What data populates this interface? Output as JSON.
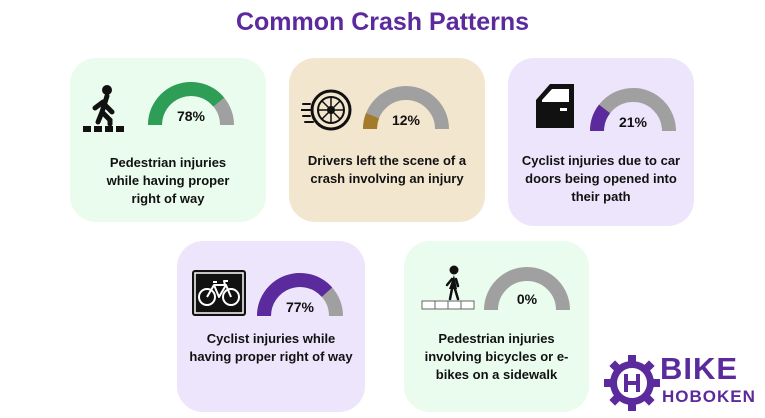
{
  "title": "Common Crash Patterns",
  "colors": {
    "title": "#5b2a9c",
    "gauge_track": "#a0a0a0",
    "green_fill": "#2e9e56",
    "tan_fill": "#a27b2c",
    "purple_fill": "#5b2a9c"
  },
  "cards": [
    {
      "text": "Pedestrian injuries while having proper right of way",
      "percent_label": "78%",
      "value": 78,
      "background": "#eafcee",
      "fill": "#2e9e56",
      "icon": "pedestrian-crosswalk-icon"
    },
    {
      "text": "Drivers left the scene of a crash involving an injury",
      "percent_label": "12%",
      "value": 12,
      "background": "#f3e6cf",
      "fill": "#a27b2c",
      "icon": "speeding-wheel-icon"
    },
    {
      "text": "Cyclist injuries due to car doors being opened into their path",
      "percent_label": "21%",
      "value": 21,
      "background": "#ece5fb",
      "fill": "#5b2a9c",
      "icon": "car-door-icon"
    },
    {
      "text": "Cyclist injuries while having proper right of way",
      "percent_label": "77%",
      "value": 77,
      "background": "#ece5fb",
      "fill": "#5b2a9c",
      "icon": "bicycle-sign-icon"
    },
    {
      "text": "Pedestrian injuries involving bicycles or e-bikes on a sidewalk",
      "percent_label": "0%",
      "value": 0,
      "background": "#eafcee",
      "fill": "#2e9e56",
      "icon": "sidewalk-pedestrian-icon"
    }
  ],
  "logo": {
    "word1": "BIKE",
    "word2": "HOBOKEN"
  }
}
